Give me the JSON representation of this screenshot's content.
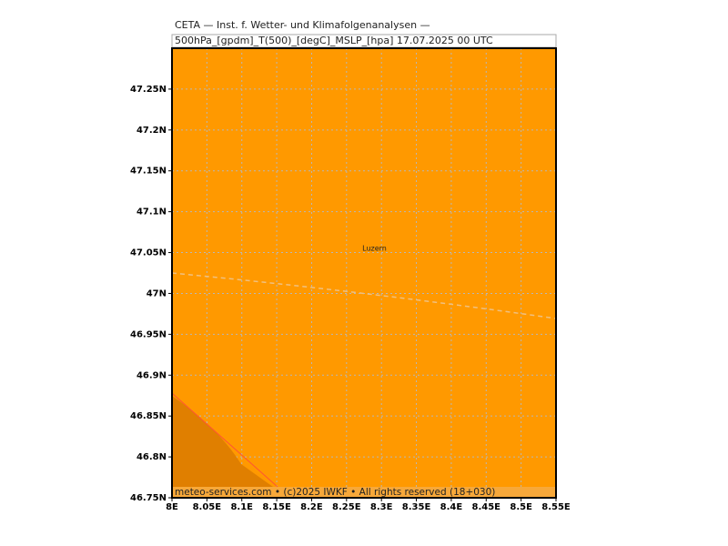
{
  "chart_data": {
    "type": "map",
    "title": "CETA — Inst. f. Wetter- und Klimafolgenanalysen —",
    "subtitle": "500hPa_[gpdm]_T(500)_[degC]_MSLP_[hpa] 17.07.2025 00 UTC",
    "footer": "meteo-services.com • (c)2025 IWKF • All rights reserved (18+030)",
    "xlim": [
      8.0,
      8.55
    ],
    "ylim": [
      46.75,
      47.3
    ],
    "xticks": [
      {
        "value": 8.0,
        "label": "8E"
      },
      {
        "value": 8.05,
        "label": "8.05E"
      },
      {
        "value": 8.1,
        "label": "8.1E"
      },
      {
        "value": 8.15,
        "label": "8.15E"
      },
      {
        "value": 8.2,
        "label": "8.2E"
      },
      {
        "value": 8.25,
        "label": "8.25E"
      },
      {
        "value": 8.3,
        "label": "8.3E"
      },
      {
        "value": 8.35,
        "label": "8.35E"
      },
      {
        "value": 8.4,
        "label": "8.4E"
      },
      {
        "value": 8.45,
        "label": "8.45E"
      },
      {
        "value": 8.5,
        "label": "8.5E"
      },
      {
        "value": 8.55,
        "label": "8.55E"
      }
    ],
    "yticks": [
      {
        "value": 46.75,
        "label": "46.75N"
      },
      {
        "value": 46.8,
        "label": "46.8N"
      },
      {
        "value": 46.85,
        "label": "46.85N"
      },
      {
        "value": 46.9,
        "label": "46.9N"
      },
      {
        "value": 46.95,
        "label": "46.95N"
      },
      {
        "value": 47.0,
        "label": "47N"
      },
      {
        "value": 47.05,
        "label": "47.05N"
      },
      {
        "value": 47.1,
        "label": "47.1N"
      },
      {
        "value": 47.15,
        "label": "47.15N"
      },
      {
        "value": 47.2,
        "label": "47.2N"
      },
      {
        "value": 47.25,
        "label": "47.25N"
      }
    ],
    "places": [
      {
        "name": "Luzern",
        "x": 8.29,
        "y": 47.055
      }
    ],
    "grid": true,
    "color": "#ff9900"
  }
}
